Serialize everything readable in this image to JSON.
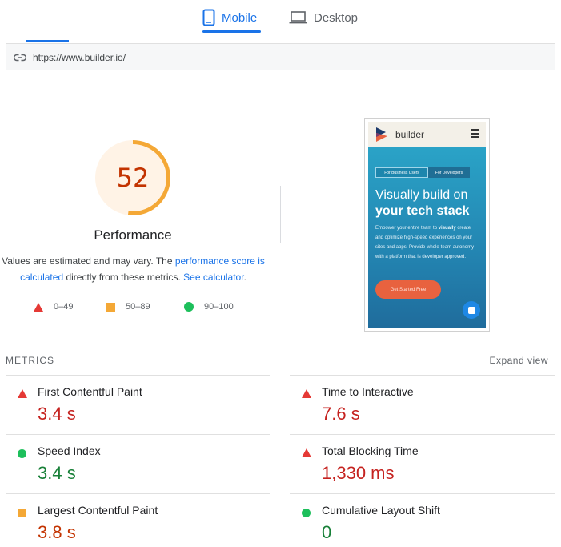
{
  "tabs": {
    "mobile": "Mobile",
    "desktop": "Desktop"
  },
  "url": "https://www.builder.io/",
  "score": {
    "value": "52",
    "title": "Performance",
    "note_part1": "Values are estimated and may vary. The ",
    "note_link1": "performance score is calculated",
    "note_part2": " directly from these metrics. ",
    "note_link2": "See calculator",
    "note_part3": ".",
    "gauge_fraction": 0.52,
    "gauge_color": "#f4a836",
    "gauge_bg": "#fff3e6"
  },
  "legend": {
    "fail": "0–49",
    "average": "50–89",
    "pass": "90–100"
  },
  "preview": {
    "logo": "builder",
    "chip1": "For Business Users",
    "chip2": "For Developers",
    "hero_line1": "Visually build on",
    "hero_line2": "your tech stack",
    "hero_desc_part1": "Empower your entire team to ",
    "hero_desc_bold": "visually",
    "hero_desc_part2": " create and optimize high-speed experiences on your sites and apps. Provide whole-team autonomy with a platform that is developer approved.",
    "cta": "Get Started Free"
  },
  "metrics": {
    "title": "METRICS",
    "expand": "Expand view",
    "fcp": {
      "label": "First Contentful Paint",
      "value": "3.4 s"
    },
    "tti": {
      "label": "Time to Interactive",
      "value": "7.6 s"
    },
    "si": {
      "label": "Speed Index",
      "value": "3.4 s"
    },
    "tbt": {
      "label": "Total Blocking Time",
      "value": "1,330 ms"
    },
    "lcp": {
      "label": "Largest Contentful Paint",
      "value": "3.8 s"
    },
    "cls": {
      "label": "Cumulative Layout Shift",
      "value": "0"
    }
  },
  "colors": {
    "accent": "#1a73e8",
    "fail": "#e53935",
    "average": "#f4a836",
    "pass": "#1dbf5b"
  }
}
